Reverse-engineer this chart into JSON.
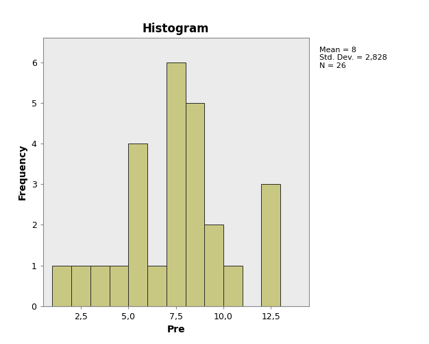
{
  "title": "Histogram",
  "xlabel": "Pre",
  "ylabel": "Frequency",
  "bar_centers": [
    1.5,
    2.5,
    3.5,
    4.5,
    5.5,
    6.5,
    7.5,
    8.5,
    9.5,
    10.5,
    12.5
  ],
  "bar_heights": [
    1,
    1,
    1,
    1,
    4,
    1,
    6,
    5,
    2,
    1,
    3
  ],
  "bar_width": 1.0,
  "bar_color": "#c8c882",
  "bar_edgecolor": "#2a2a2a",
  "bar_linewidth": 0.7,
  "xlim": [
    0.5,
    14.5
  ],
  "ylim": [
    0,
    6.6
  ],
  "xticks": [
    2.5,
    5.0,
    7.5,
    10.0,
    12.5
  ],
  "yticks": [
    0,
    1,
    2,
    3,
    4,
    5,
    6
  ],
  "xtick_labels": [
    "2,5",
    "5,0",
    "7,5",
    "10,0",
    "12,5"
  ],
  "ytick_labels": [
    "0",
    "1",
    "2",
    "3",
    "4",
    "5",
    "6"
  ],
  "stats_text": "Mean = 8\nStd. Dev. = 2,828\nN = 26",
  "fig_bg_color": "#ffffff",
  "plot_bg_color": "#ebebeb",
  "title_fontsize": 12,
  "axis_label_fontsize": 10,
  "tick_fontsize": 9,
  "stats_fontsize": 8
}
